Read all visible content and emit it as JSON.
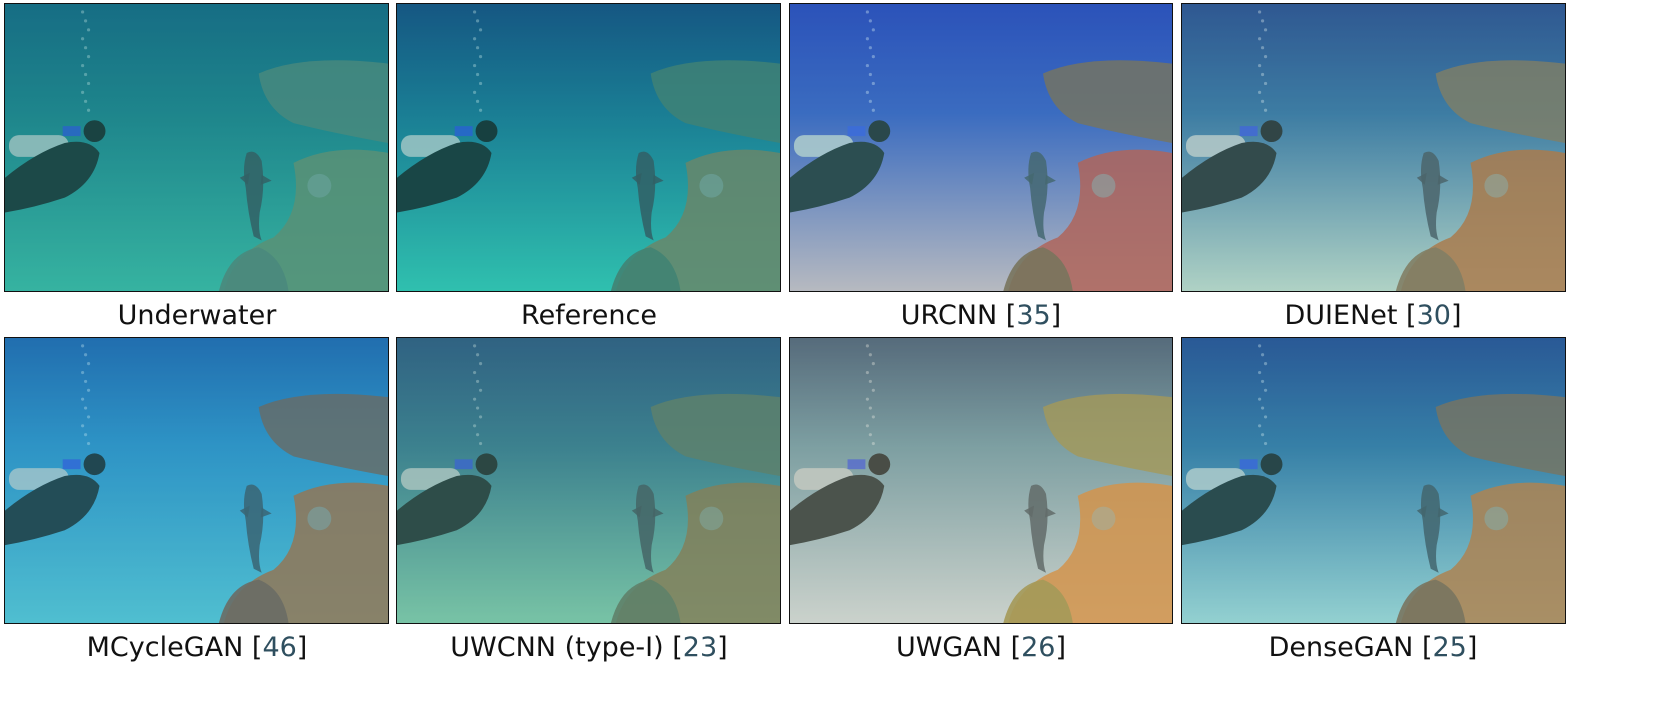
{
  "figure": {
    "panels": [
      {
        "name": "underwater",
        "caption": "Underwater",
        "cite": "",
        "style": {
          "water": "#1f7a88",
          "water_top": "#155a7e",
          "sand": "#3fb7a4",
          "rock": "#6e8a6b",
          "rock2": "#5a7f74",
          "tint": "#1aa897",
          "tint_opacity": 0.25
        }
      },
      {
        "name": "reference",
        "caption": "Reference",
        "cite": "",
        "style": {
          "water": "#1d6f8f",
          "water_top": "#173f79",
          "sand": "#38c2b0",
          "rock": "#7f7a5a",
          "rock2": "#4f7566",
          "tint": "#0fb7a8",
          "tint_opacity": 0.2
        }
      },
      {
        "name": "urcnn",
        "caption": "URCNN [",
        "cite": "35",
        "style": {
          "water": "#2e4fb8",
          "water_top": "#1b2fb0",
          "sand": "#c9b0b8",
          "rock": "#c0473a",
          "rock2": "#7b5a3d",
          "tint": "#6fe0e0",
          "tint_opacity": 0.2
        }
      },
      {
        "name": "duienet",
        "caption": "DUIENet [",
        "cite": "30",
        "style": {
          "water": "#28679a",
          "water_top": "#173a84",
          "sand": "#b7d2c4",
          "rock": "#b0662f",
          "rock2": "#7d6a4d",
          "tint": "#8fd4c7",
          "tint_opacity": 0.2
        }
      },
      {
        "name": "mcyclegan",
        "caption": "MCycleGAN [",
        "cite": "46",
        "style": {
          "water": "#2b88c1",
          "water_top": "#1a56a3",
          "sand": "#58c1cf",
          "rock": "#b0622e",
          "rock2": "#7b5340",
          "tint": "#37b7d5",
          "tint_opacity": 0.25
        }
      },
      {
        "name": "uwcnn-type-i",
        "caption": "UWCNN (type-I) [",
        "cite": "23",
        "style": {
          "water": "#2f6f8a",
          "water_top": "#1f467a",
          "sand": "#7fc7a9",
          "rock": "#8d6e45",
          "rock2": "#5e6f5a",
          "tint": "#65b99b",
          "tint_opacity": 0.25
        }
      },
      {
        "name": "uwgan",
        "caption": "UWGAN [",
        "cite": "26",
        "style": {
          "water": "#5f8fa0",
          "water_top": "#2b4a6d",
          "sand": "#c7d3d8",
          "rock": "#d1802e",
          "rock2": "#94873e",
          "tint": "#d7cfa8",
          "tint_opacity": 0.25
        }
      },
      {
        "name": "densegan",
        "caption": "DenseGAN [",
        "cite": "25",
        "style": {
          "water": "#2b6a9b",
          "water_top": "#1b3a86",
          "sand": "#9fcfcf",
          "rock": "#c06f31",
          "rock2": "#7e5d43",
          "tint": "#65d7d9",
          "tint_opacity": 0.2
        }
      }
    ]
  }
}
